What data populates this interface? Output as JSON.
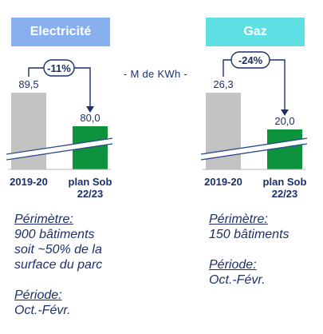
{
  "unit_label": "- M de KWh -",
  "colors": {
    "elec_header": "#89b0ee",
    "gaz_header": "#5ce0e3",
    "baseline_bar": "#c3c3c3",
    "plan_bar": "#0d933c",
    "annotation": "#1c2f6b",
    "text": "#1c2f6b"
  },
  "chart_data": [
    {
      "type": "bar",
      "title": "Electricité",
      "categories": [
        "2019-20",
        "plan Sob 22/23"
      ],
      "category_lines": [
        [
          "2019-20"
        ],
        [
          "plan Sob",
          "22/23"
        ]
      ],
      "values": [
        89.5,
        80.0
      ],
      "value_labels": [
        "89,5",
        "80,0"
      ],
      "change_label": "-11%",
      "axis_break": true,
      "ylabel": "M de KWh"
    },
    {
      "type": "bar",
      "title": "Gaz",
      "categories": [
        "2019-20",
        "plan Sob 22/23"
      ],
      "category_lines": [
        [
          "2019-20"
        ],
        [
          "plan Sob",
          "22/23"
        ]
      ],
      "values": [
        26.3,
        20.0
      ],
      "value_labels": [
        "26,3",
        "20,0"
      ],
      "change_label": "-24%",
      "axis_break": true,
      "ylabel": "M de KWh"
    }
  ],
  "notes": {
    "elec": {
      "perimetre_label": "Périmètre:",
      "perimetre_lines": [
        "900 bâtiments",
        "soit ~50% de la",
        "surface du parc"
      ],
      "periode_label": "Période:",
      "periode_text": "Oct.-Févr."
    },
    "gaz": {
      "perimetre_label": "Périmètre:",
      "perimetre_text": "150 bâtiments",
      "periode_label": "Période:",
      "periode_text": "Oct.-Févr."
    }
  }
}
